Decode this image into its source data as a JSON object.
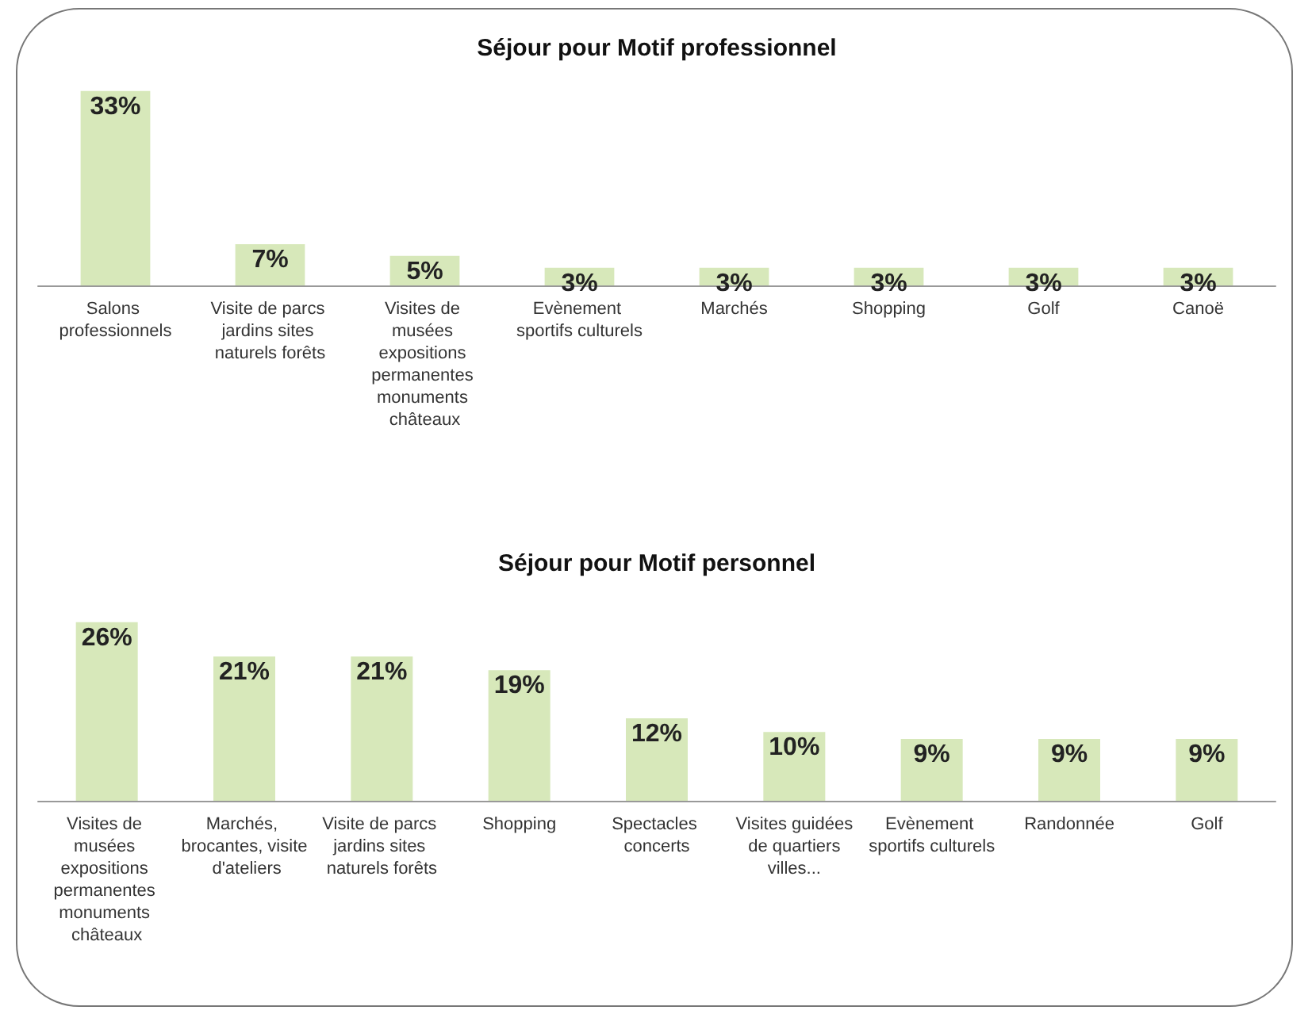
{
  "chart_data": [
    {
      "type": "bar",
      "title": "Séjour pour Motif professionnel",
      "categories": [
        "Salons professionnels",
        "Visite de parcs jardins sites naturels forêts",
        "Visites de musées expositions permanentes monuments châteaux",
        "Evènement sportifs culturels",
        "Marchés",
        "Shopping",
        "Golf",
        "Canoë"
      ],
      "values": [
        33,
        7,
        5,
        3,
        3,
        3,
        3,
        3
      ],
      "value_labels": [
        "33%",
        "7%",
        "5%",
        "3%",
        "3%",
        "3%",
        "3%",
        "3%"
      ],
      "color": "#d7e8ba"
    },
    {
      "type": "bar",
      "title": "Séjour pour Motif personnel",
      "categories": [
        "Visites de musées expositions permanentes monuments châteaux",
        "Marchés, brocantes, visite d'ateliers",
        "Visite de parcs jardins sites naturels forêts",
        "Shopping",
        "Spectacles concerts",
        "Visites guidées de quartiers villes...",
        "Evènement sportifs culturels",
        "Randonnée",
        "Golf"
      ],
      "values": [
        26,
        21,
        21,
        19,
        12,
        10,
        9,
        9,
        9
      ],
      "value_labels": [
        "26%",
        "21%",
        "21%",
        "19%",
        "12%",
        "10%",
        "9%",
        "9%",
        "9%"
      ],
      "color": "#d7e8ba"
    }
  ]
}
